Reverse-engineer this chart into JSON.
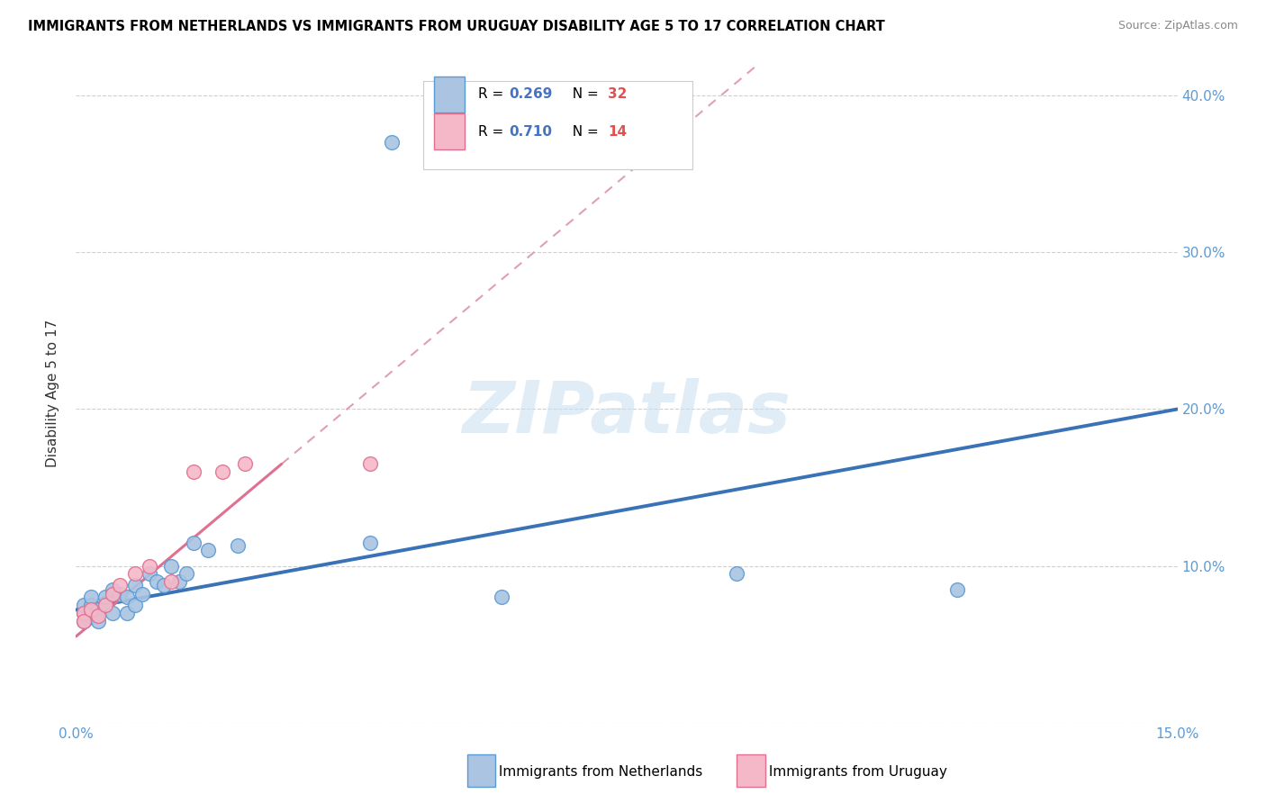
{
  "title": "IMMIGRANTS FROM NETHERLANDS VS IMMIGRANTS FROM URUGUAY DISABILITY AGE 5 TO 17 CORRELATION CHART",
  "source": "Source: ZipAtlas.com",
  "ylabel": "Disability Age 5 to 17",
  "xlim": [
    0.0,
    0.15
  ],
  "ylim": [
    0.0,
    0.42
  ],
  "netherlands_R": "0.269",
  "netherlands_N": "32",
  "uruguay_R": "0.710",
  "uruguay_N": "14",
  "netherlands_color": "#aac4e2",
  "netherlands_edge_color": "#5b9bd5",
  "uruguay_color": "#f4b8c8",
  "uruguay_edge_color": "#e07090",
  "trendline_neth_color": "#3a72b8",
  "trendline_urug_color": "#e07090",
  "trendline_urug_ext_color": "#e0a0b0",
  "watermark": "ZIPatlas",
  "neth_x": [
    0.001,
    0.001,
    0.001,
    0.002,
    0.002,
    0.002,
    0.003,
    0.003,
    0.004,
    0.004,
    0.005,
    0.005,
    0.006,
    0.007,
    0.007,
    0.008,
    0.008,
    0.009,
    0.01,
    0.011,
    0.012,
    0.013,
    0.014,
    0.015,
    0.016,
    0.018,
    0.022,
    0.04,
    0.058,
    0.09,
    0.12,
    0.043
  ],
  "neth_y": [
    0.07,
    0.075,
    0.065,
    0.068,
    0.075,
    0.08,
    0.072,
    0.065,
    0.076,
    0.08,
    0.07,
    0.085,
    0.082,
    0.08,
    0.07,
    0.088,
    0.075,
    0.082,
    0.095,
    0.09,
    0.088,
    0.1,
    0.09,
    0.095,
    0.115,
    0.11,
    0.113,
    0.115,
    0.08,
    0.095,
    0.085,
    0.37
  ],
  "urug_x": [
    0.001,
    0.001,
    0.002,
    0.003,
    0.004,
    0.005,
    0.006,
    0.008,
    0.01,
    0.013,
    0.016,
    0.02,
    0.023,
    0.04
  ],
  "urug_y": [
    0.07,
    0.065,
    0.072,
    0.068,
    0.075,
    0.082,
    0.088,
    0.095,
    0.1,
    0.09,
    0.16,
    0.16,
    0.165,
    0.165
  ],
  "neth_trendline_y0": 0.072,
  "neth_trendline_y1": 0.2,
  "urug_trendline_x0": 0.0,
  "urug_trendline_y0": 0.055,
  "urug_trendline_x1": 0.028,
  "urug_trendline_y1": 0.165
}
